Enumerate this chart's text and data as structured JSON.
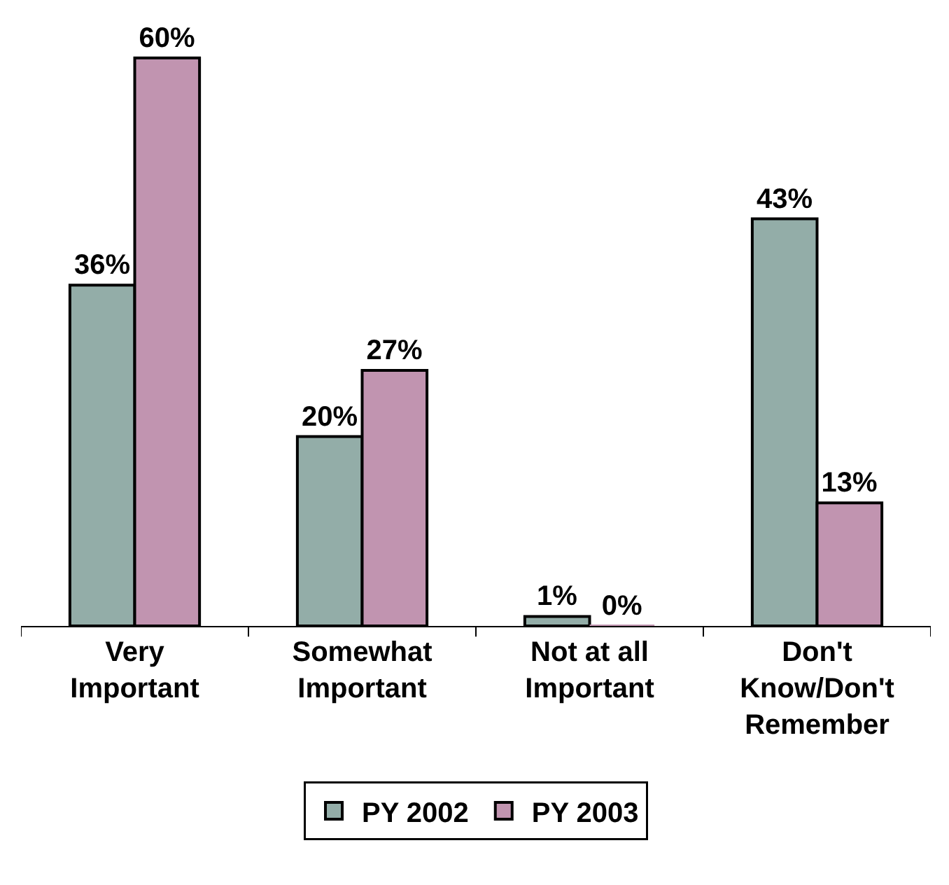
{
  "chart_data": {
    "type": "bar",
    "categories": [
      "Very Important",
      "Somewhat Important",
      "Not at all Important",
      "Don't Know/Don't Remember"
    ],
    "series": [
      {
        "name": "PY 2002",
        "color": "#93ada8",
        "values": [
          36,
          20,
          1,
          43
        ],
        "value_labels": [
          "36%",
          "20%",
          "1%",
          "43%"
        ]
      },
      {
        "name": "PY 2003",
        "color": "#c194b0",
        "values": [
          60,
          27,
          0,
          13
        ],
        "value_labels": [
          "60%",
          "27%",
          "0%",
          "13%"
        ]
      }
    ],
    "legend": "bottom"
  }
}
